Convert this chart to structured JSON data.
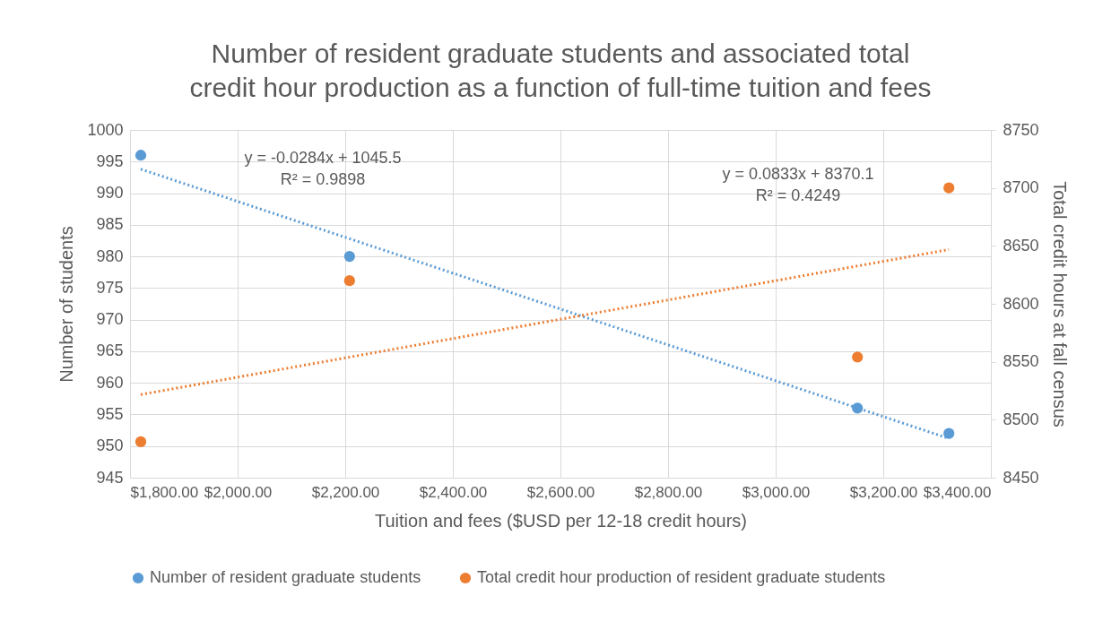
{
  "chart_data": {
    "type": "scatter",
    "title": [
      "Number of resident graduate students and associated total",
      "credit hour production as a function of full-time tuition and fees"
    ],
    "xlabel": "Tuition and fees ($USD per 12-18 credit hours)",
    "ylabel": "Number of students",
    "y2label": "Total credit hours at fall census",
    "xlim": [
      1800,
      3400
    ],
    "xticks": [
      {
        "value": 1800,
        "label": "$1,800.00"
      },
      {
        "value": 2000,
        "label": "$2,000.00"
      },
      {
        "value": 2200,
        "label": "$2,200.00"
      },
      {
        "value": 2400,
        "label": "$2,400.00"
      },
      {
        "value": 2600,
        "label": "$2,600.00"
      },
      {
        "value": 2800,
        "label": "$2,800.00"
      },
      {
        "value": 3000,
        "label": "$3,000.00"
      },
      {
        "value": 3200,
        "label": "$3,200.00"
      },
      {
        "value": 3400,
        "label": "$3,400.00"
      }
    ],
    "ylim": [
      945,
      1000
    ],
    "yticks": [
      945,
      950,
      955,
      960,
      965,
      970,
      975,
      980,
      985,
      990,
      995,
      1000
    ],
    "y2lim": [
      8450,
      8750
    ],
    "y2ticks": [
      8450,
      8500,
      8550,
      8600,
      8650,
      8700,
      8750
    ],
    "grid": true,
    "legend": "bottom",
    "marker": "circle",
    "series": [
      {
        "name": "Number of resident graduate students",
        "color": "#5b9bd5",
        "x": [
          1820,
          2208,
          3152,
          3322
        ],
        "values": [
          996,
          980,
          956,
          952
        ]
      },
      {
        "name": "Total credit hour production of resident graduate students",
        "axis": "y2",
        "color": "#ed7d31",
        "x": [
          1820,
          2208,
          3152,
          3322
        ],
        "values": [
          8481,
          8620,
          8554,
          8700
        ]
      },
      {
        "type": "line",
        "marker": "none",
        "line_style": "dotted",
        "color": "#5b9bd5",
        "x": [
          1820,
          3322
        ],
        "values": [
          993.8,
          951.2
        ]
      },
      {
        "type": "line",
        "marker": "none",
        "line_style": "dotted",
        "axis": "y2",
        "color": "#ed7d31",
        "x": [
          1820,
          3322
        ],
        "values": [
          8521.7,
          8646.8
        ]
      }
    ],
    "annotations": [
      "y = -0.0284x + 1045.5\nR² = 0.9898",
      "y = 0.0833x + 8370.1\nR² = 0.4249"
    ]
  }
}
